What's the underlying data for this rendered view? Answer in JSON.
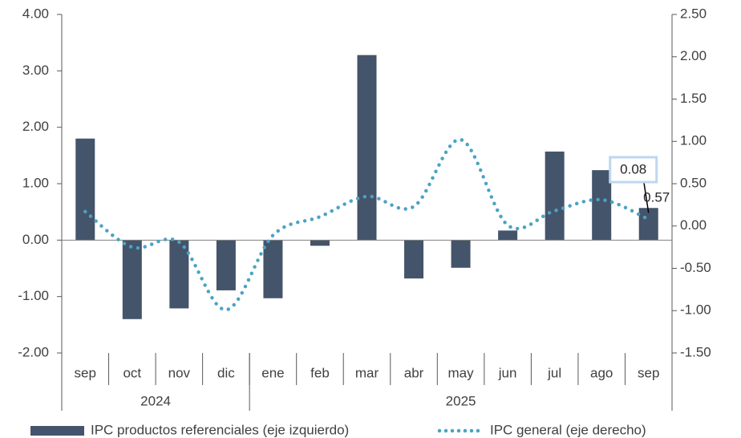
{
  "chart_data": {
    "type": "bar_line",
    "categories": [
      "sep",
      "oct",
      "nov",
      "dic",
      "ene",
      "feb",
      "mar",
      "abr",
      "may",
      "jun",
      "jul",
      "ago",
      "sep"
    ],
    "groups": [
      {
        "name": "2024",
        "span": 4
      },
      {
        "name": "2025",
        "span": 9
      }
    ],
    "series": [
      {
        "name": "IPC productos referenciales (eje izquierdo)",
        "type": "bar",
        "color": "#44546a",
        "axis": "y",
        "values": [
          1.8,
          -1.4,
          -1.21,
          -0.89,
          -1.03,
          -0.1,
          3.28,
          -0.68,
          -0.49,
          0.17,
          1.57,
          1.24,
          0.57
        ]
      },
      {
        "name": "IPC general (eje derecho)",
        "type": "line",
        "color": "#4ba3c3",
        "axis": "y2",
        "values": [
          0.17,
          -0.25,
          -0.19,
          -0.99,
          -0.11,
          0.11,
          0.35,
          0.23,
          1.02,
          0.01,
          0.18,
          0.31,
          0.08
        ]
      }
    ],
    "ylim": [
      -2,
      4
    ],
    "yticks": [
      {
        "value": -2,
        "label": "-2.00"
      },
      {
        "value": -1,
        "label": "-1.00"
      },
      {
        "value": 0,
        "label": "0.00"
      },
      {
        "value": 1,
        "label": "1.00"
      },
      {
        "value": 2,
        "label": "2.00"
      },
      {
        "value": 3,
        "label": "3.00"
      },
      {
        "value": 4,
        "label": "4.00"
      }
    ],
    "y2lim": [
      -1.5,
      2.5
    ],
    "y2ticks": [
      {
        "value": -1.5,
        "label": "-1.50"
      },
      {
        "value": -1,
        "label": "-1.00"
      },
      {
        "value": -0.5,
        "label": "-0.50"
      },
      {
        "value": 0,
        "label": "0.00"
      },
      {
        "value": 0.5,
        "label": "0.50"
      },
      {
        "value": 1,
        "label": "1.00"
      },
      {
        "value": 1.5,
        "label": "1.50"
      },
      {
        "value": 2,
        "label": "2.00"
      },
      {
        "value": 2.5,
        "label": "2.50"
      }
    ],
    "legend": "bottom"
  }
}
